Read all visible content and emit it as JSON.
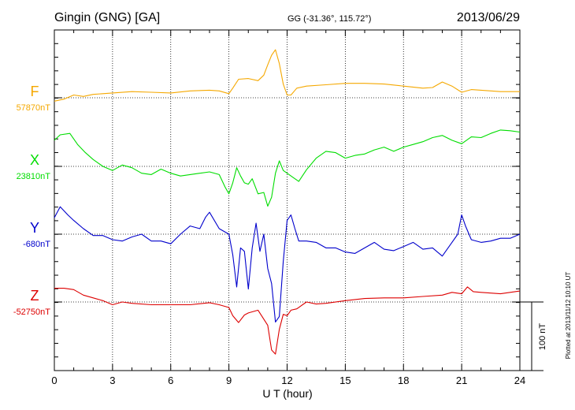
{
  "header": {
    "title": "Gingin (GNG)  [GA]",
    "coords": "GG (-31.36°, 115.72°)",
    "date": "2013/06/29"
  },
  "side_note": "Plotted at 2013/11/12 10:10 UT",
  "scale_bar": {
    "label": "100 nT",
    "value": 100
  },
  "chart_data": {
    "type": "line",
    "xlabel": "U T (hour)",
    "xlim": [
      0,
      24
    ],
    "xticks": [
      0,
      3,
      6,
      9,
      12,
      15,
      18,
      21,
      24
    ],
    "grid": true,
    "series": [
      {
        "name": "F",
        "baseline_label": "57870nT",
        "baseline": 57870,
        "color": "#f5a800",
        "x": [
          0,
          0.5,
          1,
          1.5,
          2,
          3,
          4,
          5,
          6,
          7,
          8,
          8.5,
          9,
          9.2,
          9.5,
          10,
          10.5,
          10.8,
          11,
          11.2,
          11.4,
          11.6,
          11.8,
          12,
          12.2,
          12.5,
          13,
          14,
          15,
          16,
          17,
          18,
          19,
          19.5,
          20,
          20.5,
          21,
          21.5,
          22,
          23,
          24
        ],
        "y": [
          57865,
          57868,
          57874,
          57872,
          57875,
          57877,
          57879,
          57878,
          57877,
          57880,
          57881,
          57880,
          57876,
          57884,
          57897,
          57898,
          57895,
          57903,
          57918,
          57932,
          57940,
          57920,
          57890,
          57874,
          57874,
          57884,
          57887,
          57889,
          57891,
          57891,
          57890,
          57887,
          57884,
          57885,
          57893,
          57887,
          57878,
          57882,
          57881,
          57879,
          57879
        ]
      },
      {
        "name": "X",
        "baseline_label": "23810nT",
        "baseline": 23810,
        "color": "#00dd00",
        "x": [
          0,
          0.3,
          0.8,
          1.2,
          1.6,
          2,
          2.5,
          3,
          3.5,
          4,
          4.5,
          5,
          5.5,
          6,
          6.5,
          7,
          7.5,
          8,
          8.5,
          8.8,
          9,
          9.2,
          9.4,
          9.6,
          9.8,
          10,
          10.2,
          10.5,
          10.8,
          11,
          11.2,
          11.4,
          11.6,
          11.8,
          12,
          12.3,
          12.6,
          13,
          13.5,
          14,
          14.5,
          15,
          15.5,
          16,
          16.5,
          17,
          17.5,
          18,
          18.5,
          19,
          19.5,
          20,
          20.5,
          21,
          21.5,
          22,
          22.5,
          23,
          23.5,
          24
        ],
        "y": [
          23848,
          23856,
          23858,
          23842,
          23830,
          23820,
          23810,
          23804,
          23812,
          23808,
          23800,
          23798,
          23806,
          23800,
          23796,
          23798,
          23800,
          23802,
          23798,
          23780,
          23770,
          23786,
          23808,
          23796,
          23786,
          23784,
          23792,
          23770,
          23772,
          23752,
          23765,
          23800,
          23818,
          23804,
          23800,
          23794,
          23788,
          23805,
          23822,
          23832,
          23830,
          23822,
          23826,
          23828,
          23834,
          23838,
          23832,
          23838,
          23842,
          23846,
          23852,
          23855,
          23848,
          23843,
          23853,
          23852,
          23858,
          23863,
          23862,
          23860
        ]
      },
      {
        "name": "Y",
        "baseline_label": "-680nT",
        "baseline": -680,
        "color": "#0000cc",
        "x": [
          0,
          0.3,
          0.7,
          1,
          1.5,
          2,
          2.5,
          3,
          3.5,
          4,
          4.5,
          5,
          5.5,
          6,
          6.5,
          7,
          7.5,
          7.8,
          8,
          8.5,
          9,
          9.2,
          9.4,
          9.6,
          9.8,
          10,
          10.2,
          10.4,
          10.6,
          10.8,
          11,
          11.2,
          11.4,
          11.6,
          11.8,
          12,
          12.2,
          12.4,
          12.6,
          13,
          13.5,
          14,
          14.5,
          15,
          15.5,
          16,
          16.5,
          17,
          17.5,
          18,
          18.5,
          19,
          19.5,
          20,
          20.5,
          20.8,
          21,
          21.2,
          21.5,
          22,
          22.5,
          23,
          23.5,
          24
        ],
        "y": [
          -656,
          -640,
          -652,
          -660,
          -672,
          -682,
          -682,
          -688,
          -690,
          -684,
          -680,
          -690,
          -690,
          -694,
          -680,
          -668,
          -672,
          -655,
          -648,
          -672,
          -680,
          -710,
          -757,
          -700,
          -705,
          -760,
          -700,
          -664,
          -705,
          -680,
          -730,
          -752,
          -808,
          -800,
          -720,
          -660,
          -652,
          -672,
          -690,
          -690,
          -692,
          -700,
          -700,
          -706,
          -708,
          -700,
          -692,
          -702,
          -704,
          -698,
          -692,
          -702,
          -700,
          -712,
          -692,
          -680,
          -652,
          -668,
          -688,
          -692,
          -690,
          -686,
          -686,
          -680
        ]
      },
      {
        "name": "Z",
        "baseline_label": "-52750nT",
        "baseline": -52750,
        "color": "#dd0000",
        "x": [
          0,
          0.5,
          1,
          1.5,
          2,
          2.5,
          3,
          3.5,
          4,
          5,
          6,
          7,
          8,
          8.5,
          9,
          9.2,
          9.5,
          9.8,
          10,
          10.5,
          11,
          11.2,
          11.4,
          11.6,
          11.8,
          12,
          12.2,
          12.5,
          13,
          13.5,
          14,
          15,
          16,
          17,
          18,
          19,
          20,
          20.5,
          21,
          21.3,
          21.6,
          22,
          23,
          24
        ],
        "y": [
          -52730,
          -52730,
          -52732,
          -52740,
          -52744,
          -52748,
          -52754,
          -52750,
          -52752,
          -52754,
          -52754,
          -52754,
          -52751,
          -52754,
          -52758,
          -52770,
          -52780,
          -52769,
          -52766,
          -52762,
          -52784,
          -52820,
          -52826,
          -52790,
          -52768,
          -52770,
          -52762,
          -52760,
          -52750,
          -52753,
          -52752,
          -52748,
          -52745,
          -52744,
          -52744,
          -52742,
          -52740,
          -52736,
          -52738,
          -52728,
          -52735,
          -52736,
          -52738,
          -52734
        ]
      }
    ]
  }
}
